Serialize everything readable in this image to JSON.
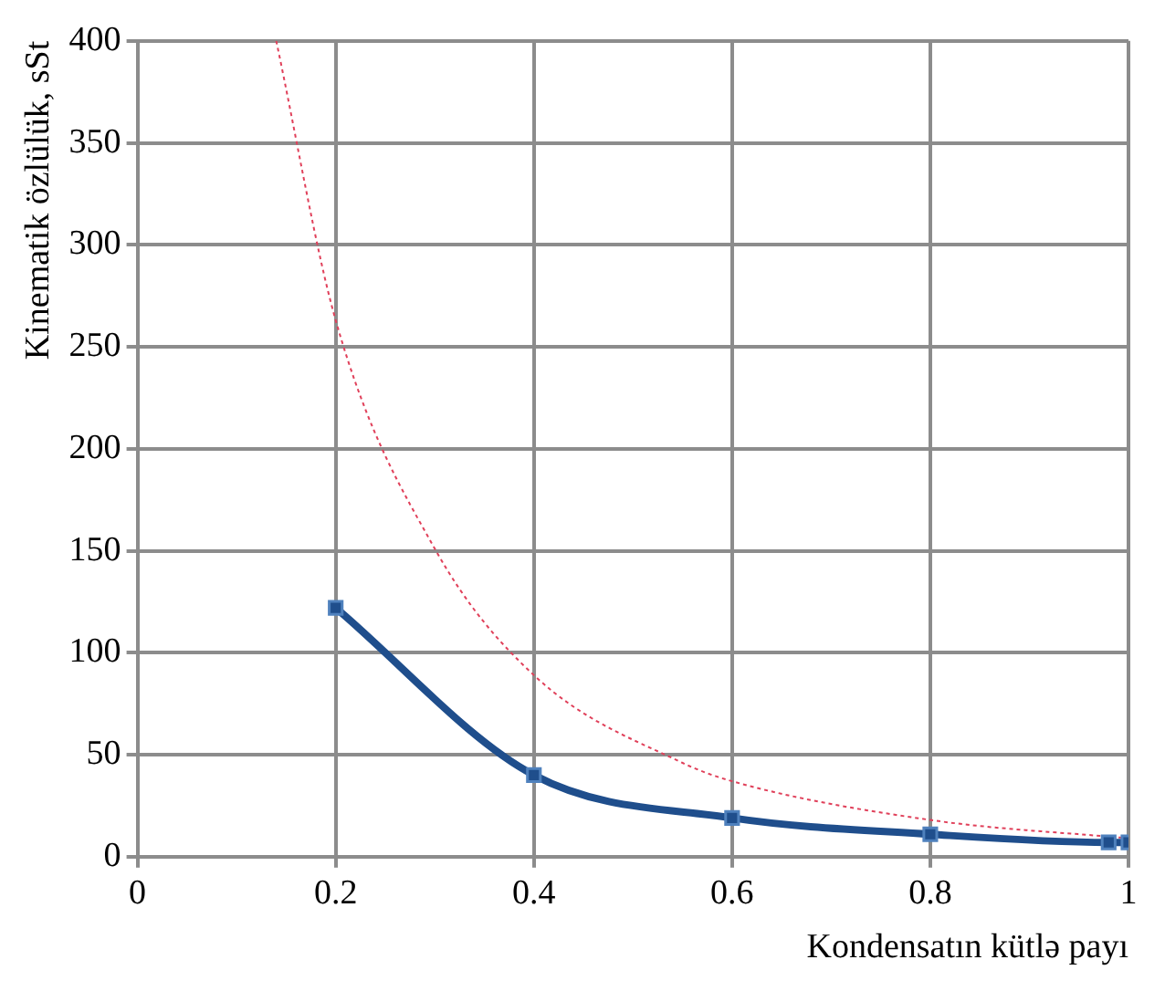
{
  "chart_data": {
    "type": "line",
    "xlabel": "Kondensatın kütlə payı",
    "ylabel": "Kinematik özlülük, sSt",
    "xlim": [
      0,
      1
    ],
    "xticks": [
      0,
      0.2,
      0.4,
      0.6,
      0.8,
      1
    ],
    "ylim": [
      0,
      400
    ],
    "yticks": [
      0,
      50,
      100,
      150,
      200,
      250,
      300,
      350,
      400
    ],
    "grid": true,
    "legend": false,
    "series": [
      {
        "color": "#1f4e8c",
        "marker": "square",
        "line_style": "solid",
        "x": [
          0.2,
          0.4,
          0.6,
          0.8,
          0.98,
          1
        ],
        "values": [
          122,
          40,
          19,
          11,
          7,
          7
        ]
      },
      {
        "type": "line",
        "color": "#e0405a",
        "marker": "none",
        "line_style": "dotted",
        "x": [
          0.14,
          0.2,
          0.3,
          0.4,
          0.55,
          0.6,
          0.8,
          1
        ],
        "values": [
          400,
          263,
          151,
          89,
          46,
          37,
          18,
          9
        ]
      }
    ]
  }
}
